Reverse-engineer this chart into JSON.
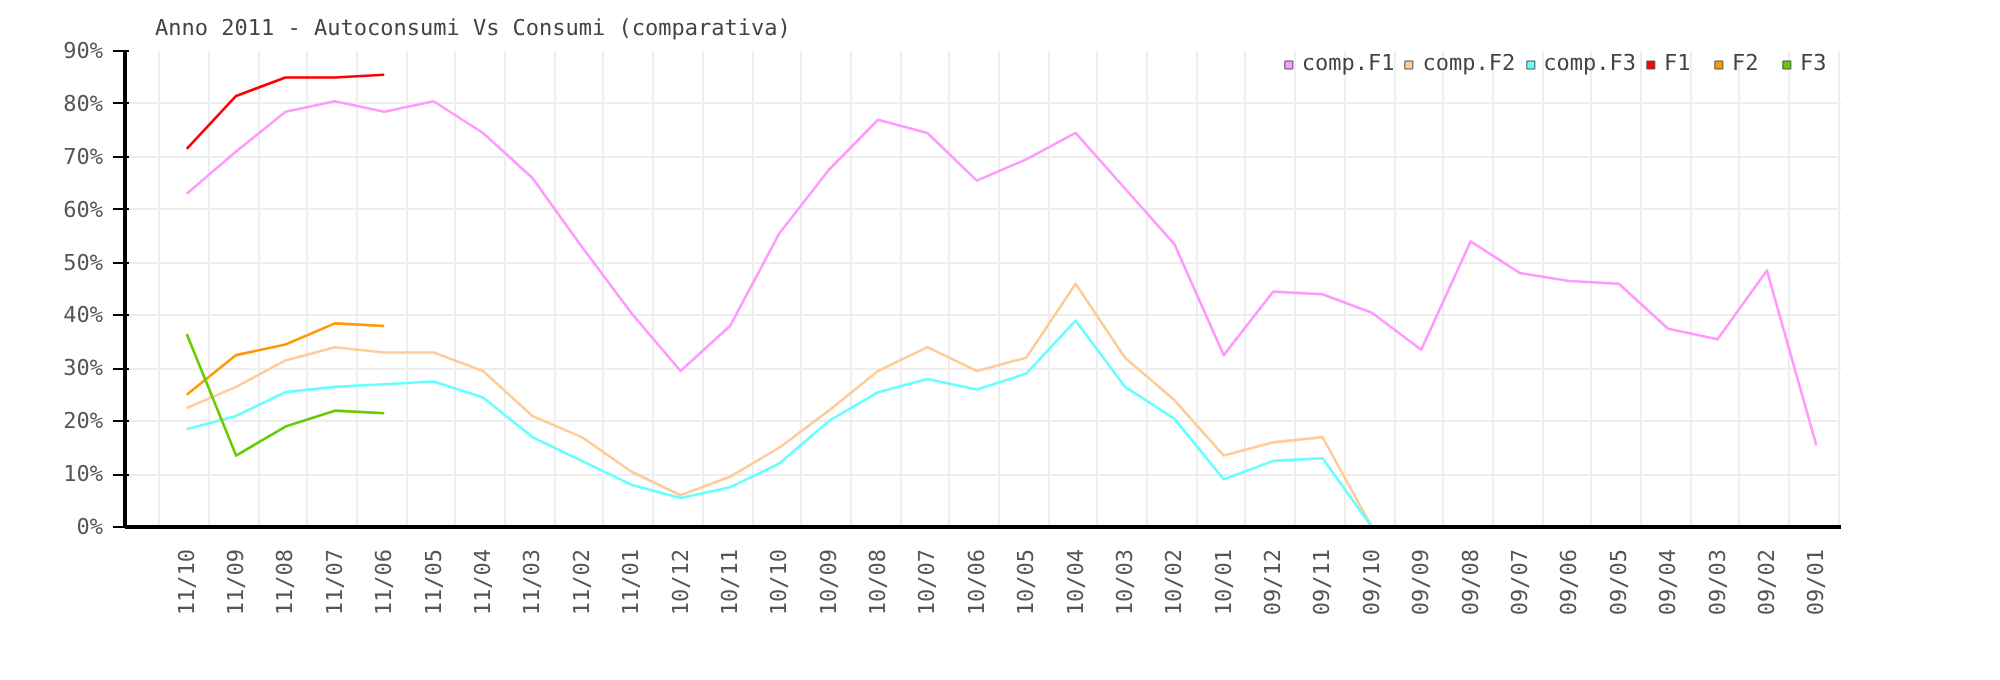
{
  "chart_data": {
    "type": "line",
    "title": "Anno 2011 - Autoconsumi Vs Consumi (comparativa)",
    "categories": [
      "11/10",
      "11/09",
      "11/08",
      "11/07",
      "11/06",
      "11/05",
      "11/04",
      "11/03",
      "11/02",
      "11/01",
      "10/12",
      "10/11",
      "10/10",
      "10/09",
      "10/08",
      "10/07",
      "10/06",
      "10/05",
      "10/04",
      "10/03",
      "10/02",
      "10/01",
      "09/12",
      "09/11",
      "09/10",
      "09/09",
      "09/08",
      "09/07",
      "09/06",
      "09/05",
      "09/04",
      "09/03",
      "09/02",
      "09/01"
    ],
    "series": [
      {
        "name": "comp.F1",
        "color": "#ff99ff",
        "values": [
          63,
          71,
          78.5,
          80.5,
          78.5,
          80.5,
          74.5,
          66,
          53,
          40.5,
          29.5,
          38,
          55.5,
          67.5,
          77,
          74.5,
          65.5,
          69.5,
          74.5,
          64,
          53.5,
          32.5,
          44.5,
          44,
          40.5,
          33.5,
          54,
          48,
          46.5,
          46,
          37.5,
          35.5,
          48.5,
          15.5
        ]
      },
      {
        "name": "comp.F2",
        "color": "#ffcc99",
        "values": [
          22.5,
          26.5,
          31.5,
          34,
          33,
          33,
          29.5,
          21,
          17,
          10.5,
          6,
          9.5,
          15,
          22,
          29.5,
          34,
          29.5,
          32,
          46,
          32,
          24,
          13.5,
          16,
          17,
          0,
          null,
          null,
          null,
          null,
          null,
          null,
          null,
          null,
          null
        ]
      },
      {
        "name": "comp.F3",
        "color": "#66ffff",
        "values": [
          18.5,
          21,
          25.5,
          26.5,
          27,
          27.5,
          24.5,
          17,
          12.5,
          8,
          5.5,
          7.5,
          12,
          20,
          25.5,
          28,
          26,
          29,
          39,
          26.5,
          20.5,
          9,
          12.5,
          13,
          0,
          null,
          null,
          null,
          null,
          null,
          null,
          null,
          null,
          null
        ]
      },
      {
        "name": "F1",
        "color": "#ff0000",
        "values": [
          71.5,
          81.5,
          85,
          85,
          85.5,
          null,
          null,
          null,
          null,
          null,
          null,
          null,
          null,
          null,
          null,
          null,
          null,
          null,
          null,
          null,
          null,
          null,
          null,
          null,
          null,
          null,
          null,
          null,
          null,
          null,
          null,
          null,
          null,
          null
        ]
      },
      {
        "name": "F2",
        "color": "#ff9900",
        "values": [
          25,
          32.5,
          34.5,
          38.5,
          38,
          null,
          null,
          null,
          null,
          null,
          null,
          null,
          null,
          null,
          null,
          null,
          null,
          null,
          null,
          null,
          null,
          null,
          null,
          null,
          null,
          null,
          null,
          null,
          null,
          null,
          null,
          null,
          null,
          null
        ]
      },
      {
        "name": "F3",
        "color": "#66cc00",
        "values": [
          36.5,
          13.5,
          19,
          22,
          21.5,
          null,
          null,
          null,
          null,
          null,
          null,
          null,
          null,
          null,
          null,
          null,
          null,
          null,
          null,
          null,
          null,
          null,
          null,
          null,
          null,
          null,
          null,
          null,
          null,
          null,
          null,
          null,
          null,
          null
        ]
      }
    ],
    "ylim": [
      0,
      90
    ],
    "yticks": [
      {
        "value": 0,
        "label": "0%"
      },
      {
        "value": 10,
        "label": "10%"
      },
      {
        "value": 20,
        "label": "20%"
      },
      {
        "value": 30,
        "label": "30%"
      },
      {
        "value": 40,
        "label": "40%"
      },
      {
        "value": 50,
        "label": "50%"
      },
      {
        "value": 60,
        "label": "60%"
      },
      {
        "value": 70,
        "label": "70%"
      },
      {
        "value": 80,
        "label": "80%"
      },
      {
        "value": 90,
        "label": "90%"
      }
    ],
    "grid": true,
    "legend": "top right"
  }
}
